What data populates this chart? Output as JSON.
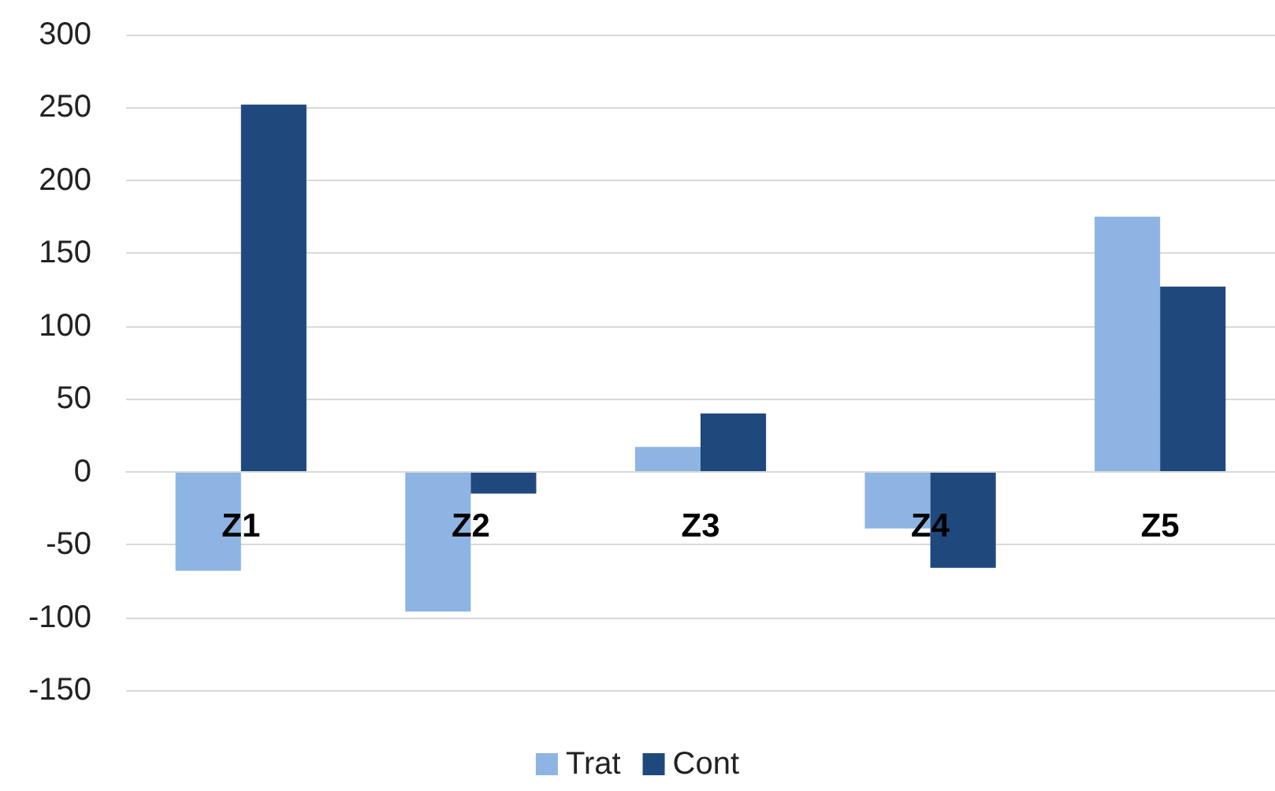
{
  "chart_data": {
    "type": "bar",
    "categories": [
      "Z1",
      "Z2",
      "Z3",
      "Z4",
      "Z5"
    ],
    "series": [
      {
        "name": "Trat",
        "color": "#8eb4e3",
        "values": [
          -68,
          -96,
          17,
          -39,
          175
        ]
      },
      {
        "name": "Cont",
        "color": "#1f497d",
        "values": [
          252,
          -15,
          40,
          -66,
          127
        ]
      }
    ],
    "ylim": [
      -150,
      300
    ],
    "yticks": [
      -150,
      -100,
      -50,
      0,
      50,
      100,
      150,
      200,
      250,
      300
    ],
    "grid": "y",
    "legend": "bottom"
  }
}
